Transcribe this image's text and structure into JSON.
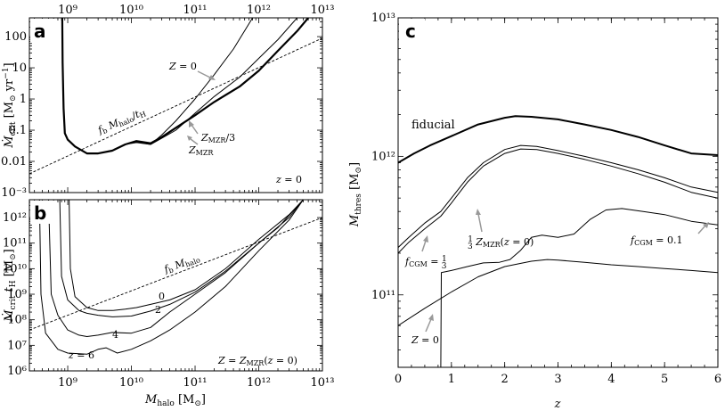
{
  "colors": {
    "line": "#000000",
    "arrow": "#999999",
    "background": "#ffffff"
  },
  "chart_data": [
    {
      "panel": "a",
      "type": "line",
      "xscale": "log",
      "yscale": "log",
      "xlim": [
        250000000.0,
        10000000000000.0
      ],
      "ylim": [
        0.001,
        400
      ],
      "xlabel": "",
      "ylabel": "Ṁcrit [M⊙ yr⁻¹]",
      "x_tick_labels": [
        "10⁹",
        "10¹⁰",
        "10¹¹",
        "10¹²",
        "10¹³"
      ],
      "x_tick_values": [
        1000000000.0,
        10000000000.0,
        100000000000.0,
        1000000000000.0,
        10000000000000.0
      ],
      "y_tick_labels": [
        "10⁻³",
        "0.01",
        "0.1",
        "1",
        "10",
        "100"
      ],
      "y_tick_values": [
        0.001,
        0.01,
        0.1,
        1,
        10,
        100
      ],
      "corner_note": "z = 0",
      "series": [
        {
          "key": "ref",
          "dash": true,
          "width": 0.9,
          "x": [
            250000000.0,
            10000000000000.0
          ],
          "y": [
            0.004,
            90
          ]
        },
        {
          "key": "zmzr",
          "width": 2.2,
          "x": [
            820000000.0,
            830000000.0,
            860000000.0,
            900000000.0,
            1000000000.0,
            1300000000.0,
            2000000000.0,
            3000000000.0,
            5000000000.0,
            8000000000.0,
            12000000000.0,
            20000000000.0,
            30000000000.0,
            50000000000.0,
            100000000000.0,
            200000000000.0,
            500000000000.0,
            1000000000000.0,
            2000000000000.0,
            4000000000000.0,
            6000000000000.0
          ],
          "y": [
            400,
            15,
            0.5,
            0.08,
            0.05,
            0.03,
            0.018,
            0.018,
            0.022,
            0.035,
            0.045,
            0.038,
            0.06,
            0.12,
            0.3,
            0.8,
            2.5,
            8,
            35,
            150,
            400
          ]
        },
        {
          "key": "zmzr3",
          "width": 1,
          "x": [
            820000000.0,
            830000000.0,
            860000000.0,
            900000000.0,
            1000000000.0,
            1300000000.0,
            2000000000.0,
            3000000000.0,
            5000000000.0,
            8000000000.0,
            12000000000.0,
            20000000000.0,
            30000000000.0,
            50000000000.0,
            100000000000.0,
            200000000000.0,
            500000000000.0,
            1000000000000.0,
            2000000000000.0,
            4000000000000.0
          ],
          "y": [
            400,
            15,
            0.5,
            0.08,
            0.05,
            0.03,
            0.018,
            0.018,
            0.022,
            0.035,
            0.042,
            0.035,
            0.055,
            0.1,
            0.35,
            1.2,
            5,
            20,
            80,
            400
          ]
        },
        {
          "key": "z0",
          "width": 1,
          "x": [
            820000000.0,
            830000000.0,
            860000000.0,
            900000000.0,
            1000000000.0,
            1300000000.0,
            2000000000.0,
            3000000000.0,
            5000000000.0,
            8000000000.0,
            12000000000.0,
            20000000000.0,
            30000000000.0,
            50000000000.0,
            100000000000.0,
            200000000000.0,
            400000000000.0,
            800000000000.0
          ],
          "y": [
            400,
            15,
            0.5,
            0.08,
            0.05,
            0.03,
            0.018,
            0.018,
            0.022,
            0.035,
            0.04,
            0.035,
            0.07,
            0.2,
            1,
            6,
            40,
            400
          ]
        }
      ],
      "labels": [
        {
          "text": "Z = 0",
          "anchor": [
            60000000000.0,
            18
          ]
        },
        {
          "text": "fb Mhalo/tH",
          "anchor": [
            7000000000.0,
            0.13
          ],
          "rotate": -24
        },
        {
          "text": "ZMZR/3",
          "anchor": [
            150000000000.0,
            0.06
          ]
        },
        {
          "text": "ZMZR",
          "anchor": [
            120000000000.0,
            0.018
          ]
        }
      ]
    },
    {
      "panel": "b",
      "type": "line",
      "xscale": "log",
      "yscale": "log",
      "xlim": [
        250000000.0,
        10000000000000.0
      ],
      "ylim": [
        1000000.0,
        5000000000000.0
      ],
      "xlabel": "Mhalo [M⊙]",
      "ylabel": "Ṁcrit tH [M⊙]",
      "x_tick_labels": [
        "10⁹",
        "10¹⁰",
        "10¹¹",
        "10¹²",
        "10¹³"
      ],
      "x_tick_values": [
        1000000000.0,
        10000000000.0,
        100000000000.0,
        1000000000000.0,
        10000000000000.0
      ],
      "y_tick_labels": [
        "10⁶",
        "10⁷",
        "10⁸",
        "10⁹",
        "10¹⁰",
        "10¹¹",
        "10¹²"
      ],
      "y_tick_values": [
        1000000.0,
        10000000.0,
        100000000.0,
        1000000000.0,
        10000000000.0,
        100000000000.0,
        1000000000000.0
      ],
      "corner_note": "Z = ZMZR(z = 0)",
      "series": [
        {
          "key": "ref",
          "dash": true,
          "width": 0.9,
          "x": [
            250000000.0,
            10000000000000.0
          ],
          "y": [
            40000000.0,
            1000000000000.0
          ]
        },
        {
          "key": "z0",
          "width": 1,
          "x": [
            1050000000.0,
            1100000000.0,
            1300000000.0,
            2000000000.0,
            3000000000.0,
            5000000000.0,
            8000000000.0,
            12000000000.0,
            20000000000.0,
            40000000000.0,
            100000000000.0,
            300000000000.0,
            1000000000000.0,
            3000000000000.0,
            5000000000000.0
          ],
          "y": [
            5000000000000.0,
            10000000000.0,
            800000000.0,
            300000000.0,
            230000000.0,
            230000000.0,
            260000000.0,
            300000000.0,
            400000000.0,
            600000000.0,
            1500000000.0,
            10000000000.0,
            140000000000.0,
            1300000000000.0,
            5000000000000.0
          ]
        },
        {
          "key": "z2",
          "width": 1,
          "x": [
            750000000.0,
            800000000.0,
            1000000000.0,
            1500000000.0,
            2000000000.0,
            3000000000.0,
            5000000000.0,
            10000000000.0,
            20000000000.0,
            40000000000.0,
            100000000000.0,
            300000000000.0,
            1000000000000.0,
            3000000000000.0,
            5000000000000.0
          ],
          "y": [
            5000000000000.0,
            5000000000.0,
            600000000.0,
            230000000.0,
            180000000.0,
            150000000.0,
            130000000.0,
            140000000.0,
            220000000.0,
            400000000.0,
            1200000000.0,
            8000000000.0,
            100000000000.0,
            1000000000000.0,
            5000000000000.0
          ]
        },
        {
          "key": "z4",
          "width": 1,
          "x": [
            500000000.0,
            550000000.0,
            700000000.0,
            1000000000.0,
            1500000000.0,
            2000000000.0,
            3000000000.0,
            5000000000.0,
            10000000000.0,
            20000000000.0,
            40000000000.0,
            100000000000.0,
            300000000000.0,
            1000000000000.0,
            2000000000000.0,
            5000000000000.0
          ],
          "y": [
            5000000000000.0,
            1000000000.0,
            150000000.0,
            40000000.0,
            25000000.0,
            22000000.0,
            25000000.0,
            32000000.0,
            30000000.0,
            50000000.0,
            200000000.0,
            1000000000.0,
            7000000000.0,
            100000000000.0,
            400000000000.0,
            5000000000000.0
          ]
        },
        {
          "key": "z6",
          "width": 1,
          "x": [
            360000000.0,
            380000000.0,
            450000000.0,
            700000000.0,
            1000000000.0,
            2000000000.0,
            3000000000.0,
            4000000000.0,
            6000000000.0,
            10000000000.0,
            20000000000.0,
            40000000000.0,
            100000000000.0,
            300000000000.0,
            1000000000000.0,
            3000000000000.0,
            5000000000000.0
          ],
          "y": [
            5000000000000.0,
            1000000000.0,
            30000000.0,
            7000000.0,
            5000000.0,
            4500000.0,
            7000000.0,
            8000000.0,
            5000000.0,
            7000000.0,
            15000000.0,
            40000000.0,
            200000000.0,
            2000000000.0,
            50000000000.0,
            800000000000.0,
            5000000000000.0
          ]
        }
      ],
      "labels": [
        {
          "text": "0",
          "anchor": [
            13000000000.0,
            350000000.0
          ]
        },
        {
          "text": "2",
          "anchor": [
            13000000000.0,
            110000000.0
          ]
        },
        {
          "text": "4",
          "anchor": [
            6500000000.0,
            22000000.0
          ]
        },
        {
          "text": "z = 6",
          "anchor": [
            430000000.0,
            3300000.0
          ]
        },
        {
          "text": "fb Mhalo",
          "anchor": [
            50000000000.0,
            1600000000.0
          ],
          "rotate": -20
        }
      ]
    },
    {
      "panel": "c",
      "type": "line",
      "xscale": "linear",
      "yscale": "log",
      "xlim": [
        0,
        6
      ],
      "ylim": [
        30000000000.0,
        10000000000000.0
      ],
      "xlabel": "z",
      "ylabel": "Mthres [M⊙]",
      "x_tick_labels": [
        "0",
        "1",
        "2",
        "3",
        "4",
        "5",
        "6"
      ],
      "x_tick_values": [
        0,
        1,
        2,
        3,
        4,
        5,
        6
      ],
      "y_tick_labels": [
        "10¹¹",
        "10¹²",
        "10¹³"
      ],
      "y_tick_values": [
        100000000000.0,
        1000000000000.0,
        10000000000000.0
      ],
      "series": [
        {
          "key": "fiducial",
          "width": 2,
          "x": [
            0,
            0.3,
            0.6,
            1,
            1.5,
            2,
            2.2,
            2.5,
            3,
            3.5,
            4,
            4.5,
            5,
            5.5,
            6
          ],
          "y": [
            900000000000.0,
            1050000000000.0,
            1200000000000.0,
            1400000000000.0,
            1700000000000.0,
            1900000000000.0,
            1950000000000.0,
            1930000000000.0,
            1850000000000.0,
            1700000000000.0,
            1550000000000.0,
            1380000000000.0,
            1200000000000.0,
            1050000000000.0,
            1020000000000.0
          ]
        },
        {
          "key": "third_zmzr",
          "width": 1,
          "x": [
            0,
            0.2,
            0.5,
            0.8,
            1,
            1.3,
            1.6,
            2,
            2.3,
            2.6,
            3,
            3.5,
            4,
            4.5,
            5,
            5.5,
            6
          ],
          "y": [
            220000000000.0,
            260000000000.0,
            330000000000.0,
            400000000000.0,
            500000000000.0,
            700000000000.0,
            900000000000.0,
            1120000000000.0,
            1200000000000.0,
            1180000000000.0,
            1100000000000.0,
            1000000000000.0,
            900000000000.0,
            800000000000.0,
            700000000000.0,
            600000000000.0,
            550000000000.0
          ]
        },
        {
          "key": "fcgm_third",
          "width": 1,
          "x": [
            0,
            0.2,
            0.5,
            0.8,
            1,
            1.3,
            1.6,
            2,
            2.3,
            2.6,
            3,
            3.5,
            4,
            4.5,
            5,
            5.5,
            6
          ],
          "y": [
            200000000000.0,
            240000000000.0,
            300000000000.0,
            370000000000.0,
            460000000000.0,
            650000000000.0,
            850000000000.0,
            1050000000000.0,
            1130000000000.0,
            1120000000000.0,
            1050000000000.0,
            950000000000.0,
            850000000000.0,
            750000000000.0,
            650000000000.0,
            550000000000.0,
            500000000000.0
          ]
        },
        {
          "key": "fcgm_01",
          "width": 1,
          "x": [
            0.8,
            0.81,
            1,
            1.3,
            1.6,
            1.9,
            2.1,
            2.3,
            2.5,
            2.7,
            3,
            3.3,
            3.6,
            3.9,
            4.2,
            4.6,
            5,
            5.5,
            6
          ],
          "y": [
            30000000000.0,
            145000000000.0,
            150000000000.0,
            160000000000.0,
            170000000000.0,
            172000000000.0,
            180000000000.0,
            210000000000.0,
            260000000000.0,
            270000000000.0,
            260000000000.0,
            275000000000.0,
            350000000000.0,
            410000000000.0,
            420000000000.0,
            400000000000.0,
            380000000000.0,
            340000000000.0,
            320000000000.0
          ]
        },
        {
          "key": "z0",
          "width": 1,
          "x": [
            0,
            0.5,
            1,
            1.5,
            2,
            2.5,
            2.8,
            3,
            3.5,
            4,
            4.5,
            5,
            5.5,
            6
          ],
          "y": [
            60000000000.0,
            80000000000.0,
            105000000000.0,
            135000000000.0,
            160000000000.0,
            175000000000.0,
            180000000000.0,
            178000000000.0,
            172000000000.0,
            165000000000.0,
            160000000000.0,
            155000000000.0,
            150000000000.0,
            145000000000.0
          ]
        }
      ],
      "labels": [
        {
          "text": "fiducial",
          "anchor": [
            0.16,
            1650000000000.0
          ]
        },
        {
          "text": "1/3 ZMZR(z = 0)",
          "anchor": [
            0.75,
            285000000000.0
          ]
        },
        {
          "text": "fCGM = 1/3",
          "anchor": [
            0.05,
            185000000000.0
          ]
        },
        {
          "text": "fCGM = 0.1",
          "anchor": [
            4.6,
            250000000000.0
          ]
        },
        {
          "text": "Z = 0",
          "anchor": [
            0.13,
            56000000000.0
          ]
        }
      ]
    }
  ]
}
